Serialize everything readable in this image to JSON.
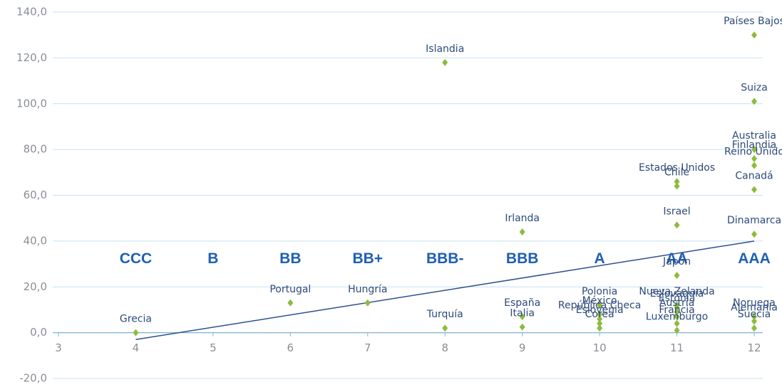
{
  "chart_data": {
    "type": "scatter",
    "xlim": [
      3,
      12
    ],
    "xticks": [
      3,
      4,
      5,
      6,
      7,
      8,
      9,
      10,
      11,
      12
    ],
    "ylim": [
      -20,
      140
    ],
    "yticks": [
      {
        "value": -20,
        "label": "-20,0"
      },
      {
        "value": 0,
        "label": "0,0"
      },
      {
        "value": 20,
        "label": "20,0"
      },
      {
        "value": 40,
        "label": "40,0"
      },
      {
        "value": 60,
        "label": "60,0"
      },
      {
        "value": 80,
        "label": "80,0"
      },
      {
        "value": 100,
        "label": "100,0"
      },
      {
        "value": 120,
        "label": "120,0"
      },
      {
        "value": 140,
        "label": "140,0"
      }
    ],
    "grid": true,
    "color": "#8dbb3c",
    "line_color": "#2f4f8f",
    "grid_color": "#c4e2f2",
    "annotation_color": "#1f5fb4",
    "points": {
      "names": [
        "Grecia",
        "Portugal",
        "Hungría",
        "Islandia",
        "Turquía",
        "Irlanda",
        "España",
        "Italia",
        "Polonia",
        "México",
        "República Checa",
        "Eslovenia",
        "Corea",
        "Estados Unidos",
        "Chile",
        "Israel",
        "Japón",
        "Nueva Zelanda",
        "Eslovaquia",
        "Estonia",
        "Austria",
        "Francia",
        "Luxemburgo",
        "Países Bajos",
        "Suiza",
        "Australia",
        "Finlandia",
        "Reino Unido",
        "Canadá",
        "Dinamarca",
        "Noruega",
        "Alemania",
        "Suecia"
      ],
      "x": [
        4,
        6,
        7,
        8,
        8,
        9,
        9,
        9,
        10,
        10,
        10,
        10,
        10,
        11,
        11,
        11,
        11,
        11,
        11,
        11,
        11,
        11,
        11,
        12,
        12,
        12,
        12,
        12,
        12,
        12,
        12,
        12,
        12
      ],
      "values": [
        0,
        13,
        13,
        118,
        2,
        44,
        7,
        2.5,
        12,
        8,
        6,
        4,
        2,
        66,
        64,
        47,
        25,
        12,
        11,
        9,
        7,
        4,
        1,
        130,
        101,
        80,
        76,
        73,
        62.5,
        43,
        7,
        5,
        2
      ]
    },
    "trendline": {
      "x": [
        4,
        12
      ],
      "values": [
        -3,
        40
      ]
    },
    "annotations": [
      {
        "text": "CCC",
        "x": 4,
        "y": 32
      },
      {
        "text": "B",
        "x": 5,
        "y": 32
      },
      {
        "text": "BB",
        "x": 6,
        "y": 32
      },
      {
        "text": "BB+",
        "x": 7,
        "y": 32
      },
      {
        "text": "BBB-",
        "x": 8,
        "y": 32
      },
      {
        "text": "BBB",
        "x": 9,
        "y": 32
      },
      {
        "text": "A",
        "x": 10,
        "y": 32
      },
      {
        "text": "AA",
        "x": 11,
        "y": 32
      },
      {
        "text": "AAA",
        "x": 12,
        "y": 32
      }
    ]
  }
}
